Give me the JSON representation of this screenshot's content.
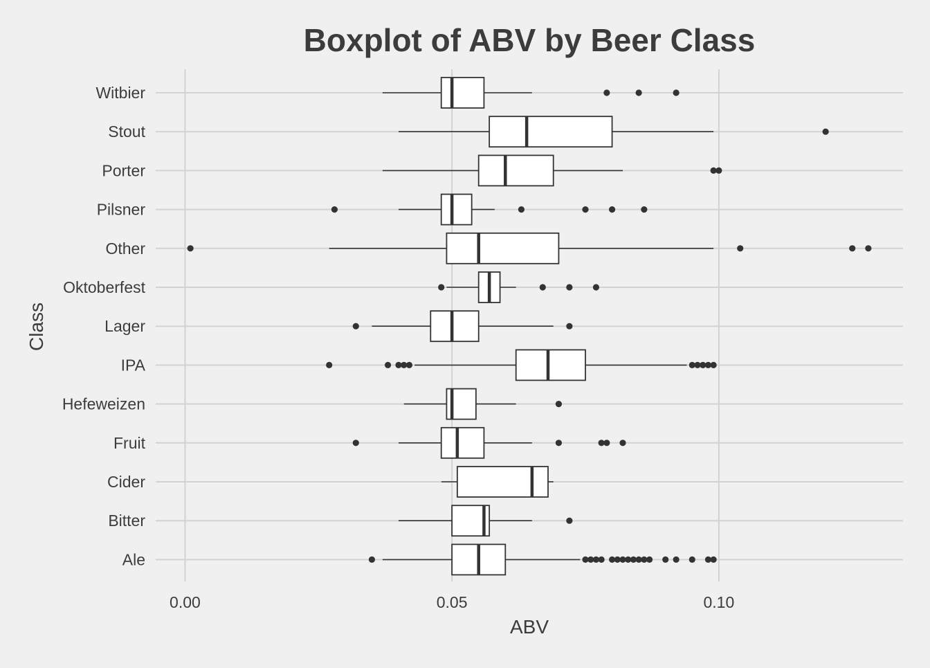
{
  "chart_data": {
    "type": "boxplot",
    "orientation": "horizontal",
    "title": "Boxplot of ABV by Beer Class",
    "xlabel": "ABV",
    "ylabel": "Class",
    "xlim": [
      -0.0055,
      0.1345
    ],
    "xticks": [
      0.0,
      0.05,
      0.1
    ],
    "xtick_labels": [
      "0.00",
      "0.05",
      "0.10"
    ],
    "grid": true,
    "legend": "none",
    "colors": {
      "background": "#f0f0f0",
      "grid": "#d2d2d2",
      "box_fill": "#ffffff",
      "stroke": "#333333",
      "text": "#3c3c3c"
    },
    "categories": [
      "Witbier",
      "Stout",
      "Porter",
      "Pilsner",
      "Other",
      "Oktoberfest",
      "Lager",
      "IPA",
      "Hefeweizen",
      "Fruit",
      "Cider",
      "Bitter",
      "Ale"
    ],
    "boxes": [
      {
        "category": "Witbier",
        "whisker_low": 0.037,
        "q1": 0.048,
        "median": 0.05,
        "q3": 0.056,
        "whisker_high": 0.065,
        "outliers": [
          0.079,
          0.085,
          0.092
        ]
      },
      {
        "category": "Stout",
        "whisker_low": 0.04,
        "q1": 0.057,
        "median": 0.064,
        "q3": 0.08,
        "whisker_high": 0.099,
        "outliers": [
          0.12
        ]
      },
      {
        "category": "Porter",
        "whisker_low": 0.037,
        "q1": 0.055,
        "median": 0.06,
        "q3": 0.069,
        "whisker_high": 0.082,
        "outliers": [
          0.099,
          0.1
        ]
      },
      {
        "category": "Pilsner",
        "whisker_low": 0.04,
        "q1": 0.048,
        "median": 0.05,
        "q3": 0.0537,
        "whisker_high": 0.058,
        "outliers": [
          0.028,
          0.063,
          0.075,
          0.08,
          0.086
        ]
      },
      {
        "category": "Other",
        "whisker_low": 0.027,
        "q1": 0.049,
        "median": 0.055,
        "q3": 0.07,
        "whisker_high": 0.099,
        "outliers": [
          0.001,
          0.104,
          0.125,
          0.128
        ]
      },
      {
        "category": "Oktoberfest",
        "whisker_low": 0.049,
        "q1": 0.055,
        "median": 0.057,
        "q3": 0.059,
        "whisker_high": 0.062,
        "outliers": [
          0.048,
          0.067,
          0.072,
          0.077
        ]
      },
      {
        "category": "Lager",
        "whisker_low": 0.035,
        "q1": 0.046,
        "median": 0.05,
        "q3": 0.055,
        "whisker_high": 0.069,
        "outliers": [
          0.032,
          0.072
        ]
      },
      {
        "category": "IPA",
        "whisker_low": 0.043,
        "q1": 0.062,
        "median": 0.068,
        "q3": 0.075,
        "whisker_high": 0.094,
        "outliers": [
          0.027,
          0.038,
          0.04,
          0.041,
          0.042,
          0.095,
          0.096,
          0.097,
          0.098,
          0.099
        ]
      },
      {
        "category": "Hefeweizen",
        "whisker_low": 0.041,
        "q1": 0.049,
        "median": 0.05,
        "q3": 0.0545,
        "whisker_high": 0.062,
        "outliers": [
          0.07
        ]
      },
      {
        "category": "Fruit",
        "whisker_low": 0.04,
        "q1": 0.048,
        "median": 0.051,
        "q3": 0.056,
        "whisker_high": 0.065,
        "outliers": [
          0.032,
          0.07,
          0.078,
          0.079,
          0.082
        ]
      },
      {
        "category": "Cider",
        "whisker_low": 0.048,
        "q1": 0.051,
        "median": 0.065,
        "q3": 0.068,
        "whisker_high": 0.069,
        "outliers": []
      },
      {
        "category": "Bitter",
        "whisker_low": 0.04,
        "q1": 0.05,
        "median": 0.056,
        "q3": 0.057,
        "whisker_high": 0.065,
        "outliers": [
          0.072
        ]
      },
      {
        "category": "Ale",
        "whisker_low": 0.037,
        "q1": 0.05,
        "median": 0.055,
        "q3": 0.06,
        "whisker_high": 0.074,
        "outliers": [
          0.035,
          0.075,
          0.076,
          0.077,
          0.078,
          0.08,
          0.081,
          0.082,
          0.083,
          0.084,
          0.085,
          0.086,
          0.087,
          0.09,
          0.092,
          0.095,
          0.098,
          0.099
        ]
      }
    ]
  }
}
